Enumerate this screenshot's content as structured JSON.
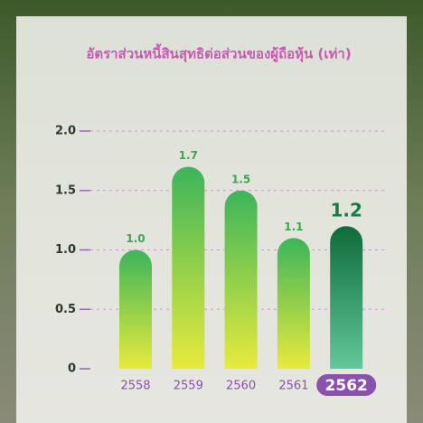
{
  "chart_data": {
    "type": "bar",
    "title": "อัตราส่วนหนี้สินสุทธิต่อส่วนของผู้ถือหุ้น (เท่า)",
    "categories": [
      "2558",
      "2559",
      "2560",
      "2561",
      "2562"
    ],
    "values": [
      1.0,
      1.7,
      1.5,
      1.1,
      1.2
    ],
    "value_labels": [
      "1.0",
      "1.7",
      "1.5",
      "1.1",
      "1.2"
    ],
    "ylim": [
      0,
      2
    ],
    "yticks": [
      0,
      0.5,
      {
        "value": 1,
        "label": "1.0"
      },
      1.5,
      {
        "value": 2,
        "label": "2.0"
      }
    ],
    "grid": true
  }
}
